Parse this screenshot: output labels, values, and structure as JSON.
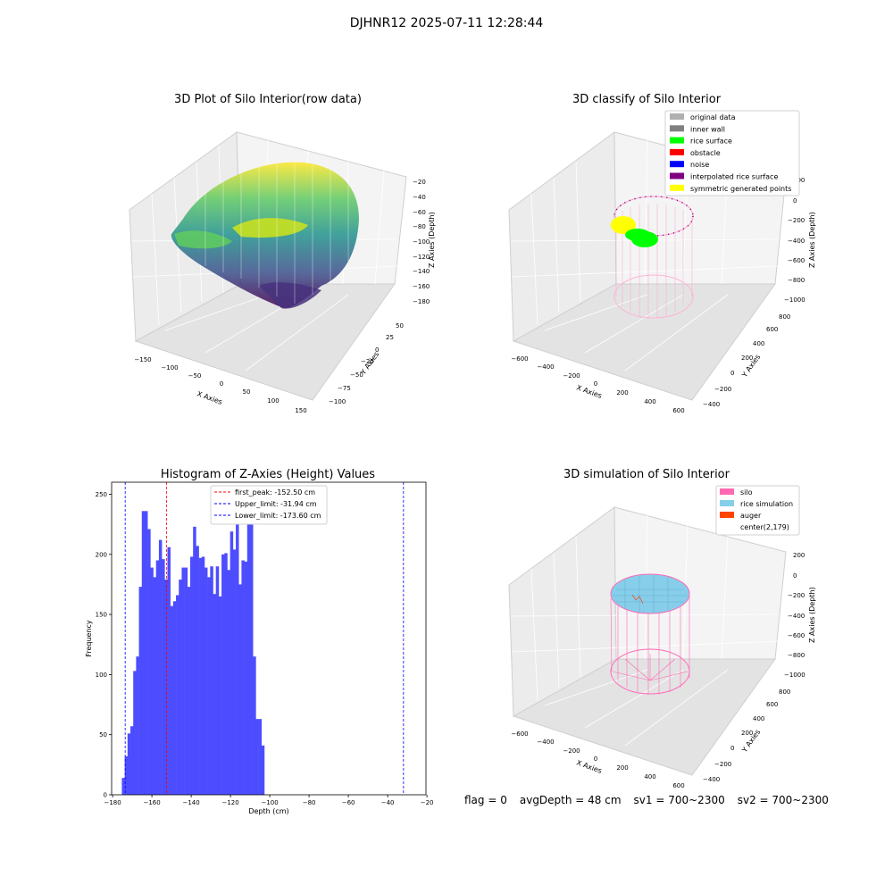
{
  "figure": {
    "suptitle": "DJHNR12 2025-07-11 12:28:44"
  },
  "panels": {
    "raw": {
      "title": "3D Plot of Silo Interior(row data)",
      "xlabel": "X Axies",
      "ylabel": "Y Axies",
      "zlabel": "Z Axies (Depth)",
      "xticks": [
        "−150",
        "−100",
        "−50",
        "0",
        "50",
        "100",
        "150"
      ],
      "yticks": [
        "−100",
        "−75",
        "−50",
        "−25",
        "0",
        "25",
        "50"
      ],
      "zticks": [
        "−20",
        "−40",
        "−60",
        "−80",
        "−100",
        "−120",
        "−140",
        "−160",
        "−180"
      ]
    },
    "classify": {
      "title": "3D classify of Silo Interior",
      "xlabel": "X Axies",
      "ylabel": "Y Axies",
      "zlabel": "Z Axies (Depth)",
      "xticks": [
        "−600",
        "−400",
        "−200",
        "0",
        "200",
        "400",
        "600"
      ],
      "yticks": [
        "−400",
        "−200",
        "0",
        "200",
        "400",
        "600",
        "800"
      ],
      "zticks": [
        "200",
        "0",
        "−200",
        "−400",
        "−600",
        "−800",
        "−1000"
      ],
      "legend": [
        {
          "label": "original data",
          "color": "#b0b0b0"
        },
        {
          "label": "inner wall",
          "color": "#808080"
        },
        {
          "label": "rice surface",
          "color": "#00ff00"
        },
        {
          "label": "obstacle",
          "color": "#ff0000"
        },
        {
          "label": "noise",
          "color": "#0000ff"
        },
        {
          "label": "interpolated rice surface",
          "color": "#800080"
        },
        {
          "label": "symmetric generated points",
          "color": "#ffff00"
        }
      ]
    },
    "histogram": {
      "title": "Histogram of Z-Axies (Height) Values",
      "xlabel": "Depth (cm)",
      "ylabel": "Frequency",
      "legend": [
        {
          "label": "first_peak: -152.50 cm",
          "color": "#ff0000"
        },
        {
          "label": "Upper_limit: -31.94 cm",
          "color": "#0000ff"
        },
        {
          "label": "Lower_limit: -173.60 cm",
          "color": "#0000ff"
        }
      ]
    },
    "simulation": {
      "title": "3D simulation of Silo Interior",
      "xlabel": "X Axies",
      "ylabel": "Y Axies",
      "zlabel": "Z Axies (Depth)",
      "xticks": [
        "−600",
        "−400",
        "−200",
        "0",
        "200",
        "400",
        "600"
      ],
      "yticks": [
        "−400",
        "−200",
        "0",
        "200",
        "400",
        "600",
        "800"
      ],
      "zticks": [
        "200",
        "0",
        "−200",
        "−400",
        "−600",
        "−800",
        "−1000"
      ],
      "legend": [
        {
          "label": "silo",
          "color": "#ff69b4"
        },
        {
          "label": "rice simulation",
          "color": "#87ceeb"
        },
        {
          "label": "auger",
          "color": "#ff4500"
        },
        {
          "label": "center(2,179)",
          "color": ""
        }
      ]
    }
  },
  "status": {
    "flag": "flag = 0",
    "avg_depth": "avgDepth = 48 cm",
    "sv1": "sv1 = 700~2300",
    "sv2": "sv2 = 700~2300"
  },
  "chart_data": {
    "type": "bar",
    "title": "Histogram of Z-Axies (Height) Values",
    "xlabel": "Depth (cm)",
    "ylabel": "Frequency",
    "xlim": [
      -180.5,
      -20.5
    ],
    "ylim": [
      0,
      260
    ],
    "xticks": [
      -180,
      -160,
      -140,
      -120,
      -100,
      -80,
      -60,
      -40,
      -20
    ],
    "yticks": [
      0,
      50,
      100,
      150,
      200,
      250
    ],
    "bin_start": -175.3,
    "bin_width": 1.45,
    "bar_color": "#4d4dff",
    "values": [
      14,
      32,
      51,
      57,
      103,
      115,
      173,
      236,
      236,
      221,
      189,
      181,
      195,
      212,
      196,
      179,
      206,
      157,
      161,
      166,
      179,
      189,
      189,
      173,
      198,
      223,
      207,
      197,
      198,
      189,
      181,
      190,
      167,
      190,
      165,
      200,
      201,
      187,
      219,
      204,
      233,
      175,
      195,
      194,
      247,
      235,
      115,
      63,
      63,
      41
    ],
    "lines": [
      {
        "label": "first_peak: -152.50 cm",
        "x": -152.5,
        "color": "#ff0000"
      },
      {
        "label": "Upper_limit: -31.94 cm",
        "x": -31.94,
        "color": "#0000ff"
      },
      {
        "label": "Lower_limit: -173.60 cm",
        "x": -173.6,
        "color": "#0000ff"
      }
    ]
  }
}
